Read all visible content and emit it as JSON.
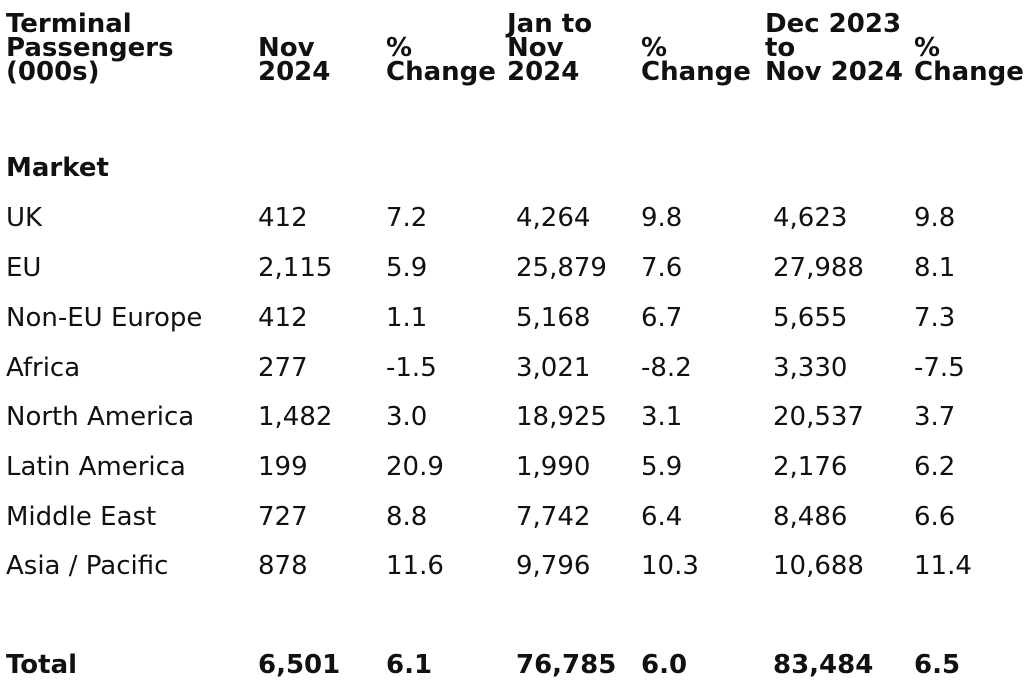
{
  "table": {
    "headers": [
      "Terminal\nPassengers\n(000s)",
      "Nov\n2024",
      "%\nChange",
      "Jan to\nNov\n2024",
      "%\nChange",
      "Dec 2023\nto\nNov 2024",
      "%\nChange"
    ],
    "section_label": "Market",
    "rows": [
      [
        "UK",
        "412",
        "7.2",
        "4,264",
        "9.8",
        "4,623",
        "9.8"
      ],
      [
        "EU",
        "2,115",
        "5.9",
        "25,879",
        "7.6",
        "27,988",
        "8.1"
      ],
      [
        "Non-EU Europe",
        "412",
        "1.1",
        "5,168",
        "6.7",
        "5,655",
        "7.3"
      ],
      [
        "Africa",
        "277",
        "-1.5",
        "3,021",
        "-8.2",
        "3,330",
        "-7.5"
      ],
      [
        "North America",
        "1,482",
        "3.0",
        "18,925",
        "3.1",
        "20,537",
        "3.7"
      ],
      [
        "Latin America",
        "199",
        "20.9",
        "1,990",
        "5.9",
        "2,176",
        "6.2"
      ],
      [
        "Middle East",
        "727",
        "8.8",
        "7,742",
        "6.4",
        "8,486",
        "6.6"
      ],
      [
        "Asia / Pacific",
        "878",
        "11.6",
        "9,796",
        "10.3",
        "10,688",
        "11.4"
      ]
    ],
    "total": [
      "Total",
      "6,501",
      "6.1",
      "76,785",
      "6.0",
      "83,484",
      "6.5"
    ]
  }
}
